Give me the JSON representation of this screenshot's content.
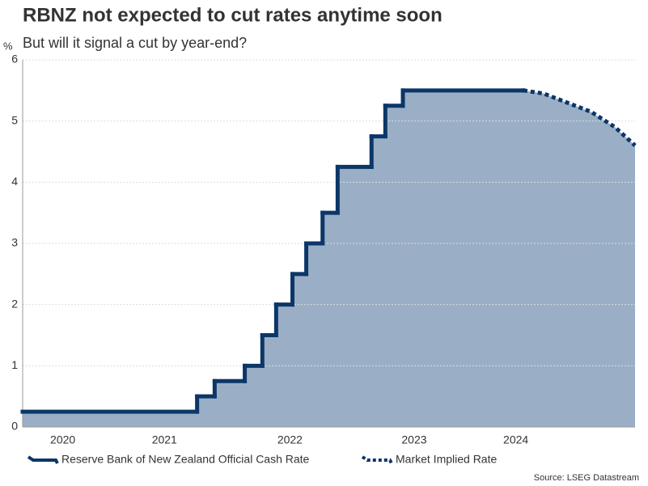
{
  "chart_data": {
    "type": "step-line",
    "title": "RBNZ not expected to cut rates anytime soon",
    "subtitle": "But will it signal a cut by year-end?",
    "y_label": "%",
    "source": "Source: LSEG Datastream",
    "area_color": "#9aafc5",
    "xlim": [
      2020.37,
      2025.25
    ],
    "xticks": [
      {
        "value": 2020.69,
        "label": "2020"
      },
      {
        "value": 2021.5,
        "label": "2021"
      },
      {
        "value": 2022.5,
        "label": "2022"
      },
      {
        "value": 2023.49,
        "label": "2023"
      },
      {
        "value": 2024.3,
        "label": "2024"
      }
    ],
    "ylim": [
      0,
      6
    ],
    "yticks": [
      0,
      1,
      2,
      3,
      4,
      5,
      6
    ],
    "grid": true,
    "series": [
      {
        "name": "Reserve Bank of New Zealand Official Cash Rate",
        "color": "#0b3668",
        "style": "step",
        "x": [
          2020.37,
          2021.76,
          2021.9,
          2022.14,
          2022.28,
          2022.39,
          2022.52,
          2022.63,
          2022.76,
          2022.88,
          2023.15,
          2023.26,
          2023.4,
          2024.36
        ],
        "values": [
          0.25,
          0.5,
          0.75,
          1.0,
          1.5,
          2.0,
          2.5,
          3.0,
          3.5,
          4.25,
          4.75,
          5.25,
          5.5,
          5.5
        ]
      },
      {
        "name": "Market Implied Rate",
        "color": "#0b3668",
        "style": "dotted",
        "x": [
          2024.36,
          2024.52,
          2024.71,
          2024.9,
          2025.09,
          2025.25
        ],
        "values": [
          5.5,
          5.45,
          5.3,
          5.15,
          4.9,
          4.6
        ]
      }
    ]
  }
}
